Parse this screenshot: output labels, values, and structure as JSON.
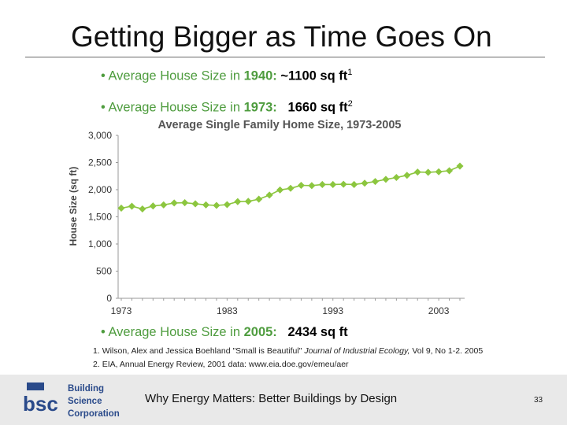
{
  "slide": {
    "title": "Getting Bigger as Time Goes On",
    "bullets": [
      {
        "prefix": "Average House Size in ",
        "year": "1940:",
        "value": " ~1100 sq ft",
        "sup": "1"
      },
      {
        "prefix": "Average House Size in ",
        "year": "1973:",
        "value": "   1660 sq ft",
        "sup": "2"
      },
      {
        "prefix": "Average House Size in ",
        "year": "2005:",
        "value": "   2434 sq ft",
        "sup": ""
      }
    ],
    "references": [
      {
        "num": "1.",
        "text": "Wilson, Alex and Jessica Boehland \"Small is Beautiful\"",
        "journal": "Journal of Industrial Ecology,",
        "rest": "Vol 9, No 1-2. 2005"
      },
      {
        "num": "2.",
        "text": "EIA, Annual Energy Review, 2001 data: www.eia.doe.gov/emeu/aer",
        "journal": "",
        "rest": ""
      }
    ],
    "footer_text": "Why Energy Matters: Better Buildings by Design",
    "page_number": "33",
    "logo": {
      "mark": "bsc",
      "line1": "Building",
      "line2": "Science",
      "line3": "Corporation"
    }
  },
  "chart_data": {
    "type": "line",
    "title": "Average Single Family Home Size, 1973-2005",
    "xlabel": "",
    "ylabel": "House Size (sq ft)",
    "x": [
      1973,
      1974,
      1975,
      1976,
      1977,
      1978,
      1979,
      1980,
      1981,
      1982,
      1983,
      1984,
      1985,
      1986,
      1987,
      1988,
      1989,
      1990,
      1991,
      1992,
      1993,
      1994,
      1995,
      1996,
      1997,
      1998,
      1999,
      2000,
      2001,
      2002,
      2003,
      2004,
      2005
    ],
    "series": [
      {
        "name": "",
        "values": [
          1660,
          1695,
          1645,
          1700,
          1720,
          1755,
          1760,
          1740,
          1720,
          1710,
          1725,
          1780,
          1785,
          1825,
          1900,
          1995,
          2025,
          2080,
          2075,
          2095,
          2095,
          2100,
          2095,
          2120,
          2150,
          2190,
          2225,
          2265,
          2324,
          2320,
          2330,
          2349,
          2434
        ]
      }
    ],
    "xticks": [
      "1973",
      "1983",
      "1993",
      "2003"
    ],
    "yticks": [
      "0",
      "500",
      "1,000",
      "1,500",
      "2,000",
      "2,500",
      "3,000"
    ],
    "ylim": [
      0,
      3000
    ],
    "xlim": [
      1973,
      2005
    ],
    "color": "#8cc63f",
    "grid": false
  }
}
